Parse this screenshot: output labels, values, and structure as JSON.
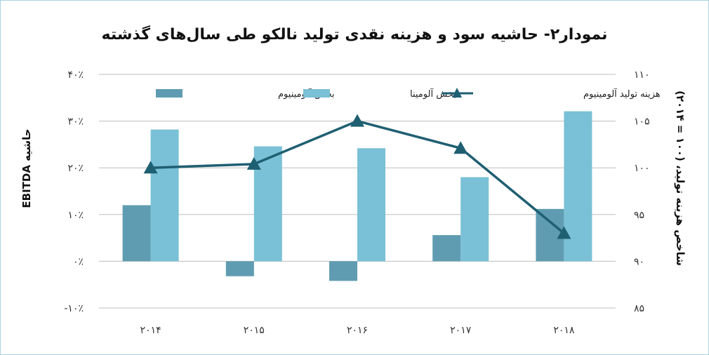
{
  "chart_data": {
    "type": "bar",
    "title": "نمودار۲- حاشیه سود و هزینه نقدی تولید نالکو طی سال‌های گذشته",
    "categories": [
      "۲۰۱۴",
      "۲۰۱۵",
      "۲۰۱۶",
      "۲۰۱۷",
      "۲۰۱۸"
    ],
    "series": [
      {
        "name": "بخش آلومینیوم",
        "kind": "bar",
        "axis": "left",
        "color": "#5f9cb1",
        "values": [
          12,
          -3.2,
          -4.2,
          5.6,
          11.2
        ]
      },
      {
        "name": "بخش آلومینا",
        "kind": "bar",
        "axis": "left",
        "color": "#7ac0d6",
        "values": [
          28.2,
          24.6,
          24.2,
          18,
          32.1
        ]
      },
      {
        "name": "هزینه تولید آلومینیوم",
        "kind": "line",
        "axis": "right",
        "color": "#1f5f72",
        "values": [
          100,
          100.4,
          105,
          102.1,
          93
        ]
      }
    ],
    "ylabel": "حاشیه EBITDA",
    "y2label": "شاخص هزینه تولید، (۱۰۰ = ۲۰۱۴)",
    "ylim": [
      -10,
      40
    ],
    "y2lim": [
      85,
      110
    ],
    "yticks": [
      "-۱۰٪",
      "۰٪",
      "۱۰٪",
      "۲۰٪",
      "۳۰٪",
      "۴۰٪"
    ],
    "y2ticks": [
      "۸۵",
      "۹۰",
      "۹۵",
      "۱۰۰",
      "۱۰۵",
      "۱۱۰"
    ],
    "grid": true,
    "legend_position": "top"
  }
}
